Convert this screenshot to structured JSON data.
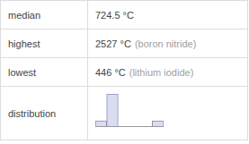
{
  "table": {
    "rows": [
      {
        "label": "median",
        "value": "724.5 °C"
      },
      {
        "label": "highest",
        "value": "2527 °C",
        "note": "(boron nitride)"
      },
      {
        "label": "lowest",
        "value": "446 °C",
        "note": "(lithium iodide)"
      },
      {
        "label": "distribution"
      }
    ]
  },
  "chart_data": {
    "type": "histogram",
    "bins": [
      0,
      500,
      1000,
      1500,
      2000,
      2500,
      3000
    ],
    "counts": [
      1,
      6,
      0,
      0,
      0,
      1
    ],
    "color": "#dcdcf0",
    "xlim": [
      0,
      3000
    ],
    "ylim": [
      0,
      6
    ],
    "tick_labels": false
  }
}
